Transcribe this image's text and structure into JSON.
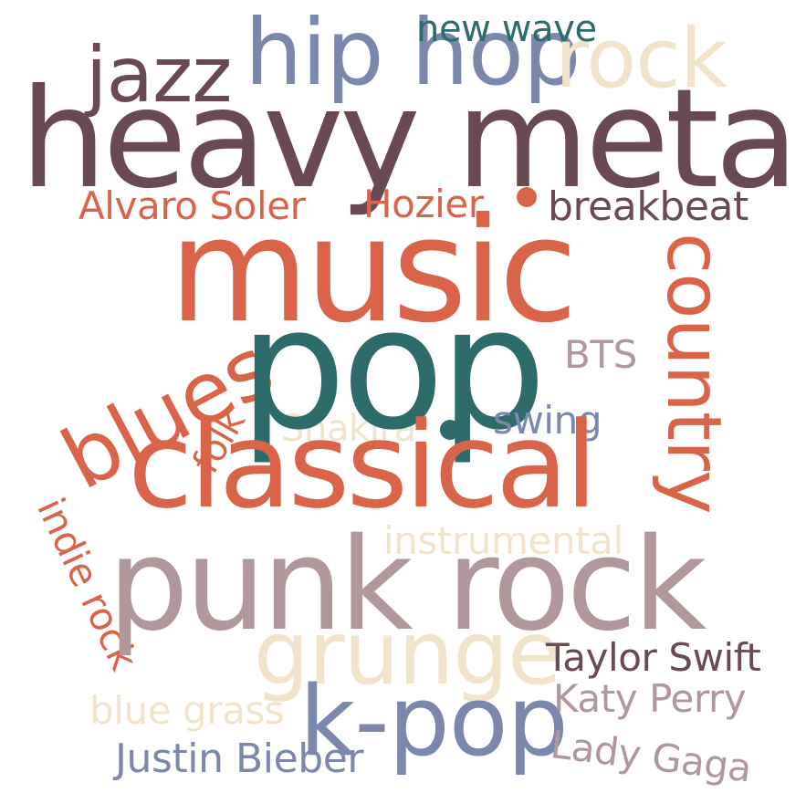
{
  "colors": {
    "maroon": "#6a4a52",
    "coral": "#d9644a",
    "teal": "#2e6b6b",
    "slate_blue": "#7b87ad",
    "mauve": "#b0979c",
    "cream": "#f2e4cc"
  },
  "words": {
    "heavy_metal": "heavy metal",
    "music": "music",
    "pop": "pop",
    "punk_rock": "punk rock",
    "classical": "classical",
    "jazz": "jazz",
    "hip_hop": "hip hop",
    "rock": "rock",
    "new_wave": "new wave",
    "alvaro_soler": "Alvaro Soler",
    "hozier": "Hozier",
    "breakbeat": "breakbeat",
    "country": "country",
    "blues": "blues",
    "folk": "folk",
    "bts": "BTS",
    "swing": "swing",
    "shakira": "Shakira",
    "instrumental": "instrumental",
    "indie_rock": "indie rock",
    "grunge": "grunge",
    "k_pop": "k-pop",
    "taylor_swift": "Taylor Swift",
    "katy_perry": "Katy Perry",
    "blue_grass": "blue grass",
    "justin_bieber": "Justin Bieber",
    "lady_gaga": "Lady Gaga"
  },
  "word_colors": {
    "heavy_metal": "maroon",
    "music": "coral",
    "pop": "teal",
    "punk_rock": "mauve",
    "classical": "coral",
    "jazz": "maroon",
    "hip_hop": "slate_blue",
    "rock": "cream",
    "new_wave": "teal",
    "alvaro_soler": "coral",
    "hozier": "coral",
    "breakbeat": "maroon",
    "country": "coral",
    "blues": "coral",
    "folk": "coral",
    "bts": "mauve",
    "swing": "slate_blue",
    "shakira": "cream",
    "instrumental": "cream",
    "indie_rock": "coral",
    "grunge": "cream",
    "k_pop": "slate_blue",
    "taylor_swift": "maroon",
    "katy_perry": "mauve",
    "blue_grass": "cream",
    "justin_bieber": "slate_blue",
    "lady_gaga": "mauve"
  }
}
